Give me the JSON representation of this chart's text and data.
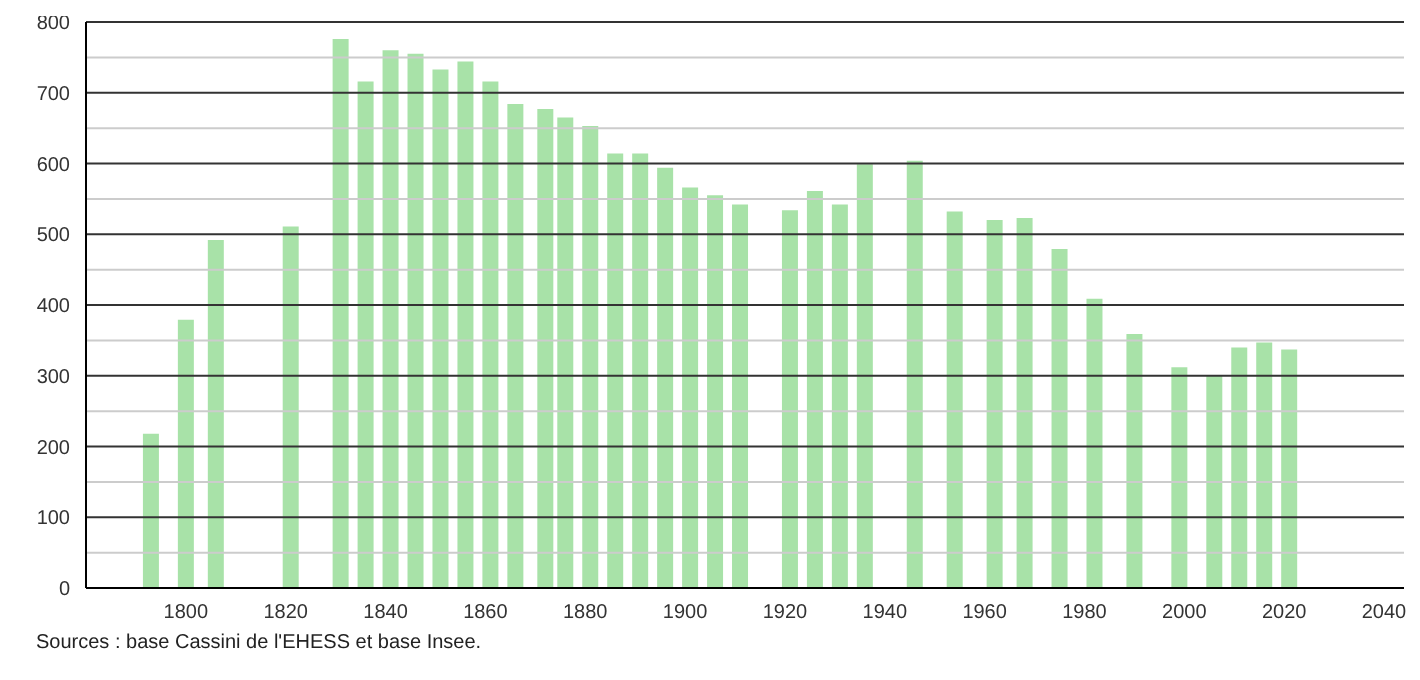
{
  "chart_data": {
    "type": "bar",
    "color": "#a8e2a8",
    "x": [
      1793,
      1800,
      1806,
      1821,
      1831,
      1836,
      1841,
      1846,
      1851,
      1856,
      1861,
      1866,
      1872,
      1876,
      1881,
      1886,
      1891,
      1896,
      1901,
      1906,
      1911,
      1921,
      1926,
      1931,
      1936,
      1946,
      1954,
      1962,
      1968,
      1975,
      1982,
      1990,
      1999,
      2006,
      2011,
      2016,
      2021
    ],
    "values": [
      218,
      379,
      492,
      511,
      776,
      716,
      760,
      755,
      733,
      744,
      716,
      684,
      677,
      665,
      653,
      614,
      614,
      594,
      566,
      555,
      542,
      534,
      561,
      542,
      599,
      604,
      532,
      520,
      523,
      479,
      409,
      359,
      312,
      301,
      340,
      347,
      337
    ],
    "xlim": [
      1780,
      2044
    ],
    "xticks": [
      1800,
      1820,
      1840,
      1860,
      1880,
      1900,
      1920,
      1940,
      1960,
      1980,
      2000,
      2020,
      2040
    ],
    "ylim": [
      0,
      800
    ],
    "yticks": [
      0,
      {
        "value": 50,
        "label": null
      },
      100,
      {
        "value": 150,
        "label": null
      },
      200,
      {
        "value": 250,
        "label": null
      },
      300,
      {
        "value": 350,
        "label": null
      },
      400,
      {
        "value": 450,
        "label": null
      },
      500,
      {
        "value": 550,
        "label": null
      },
      600,
      {
        "value": 650,
        "label": null
      },
      700,
      {
        "value": 750,
        "label": null
      },
      800
    ],
    "grid": "y",
    "legend": false,
    "annotations": [
      "Sources : base Cassini de l'EHESS et base Insee."
    ]
  }
}
